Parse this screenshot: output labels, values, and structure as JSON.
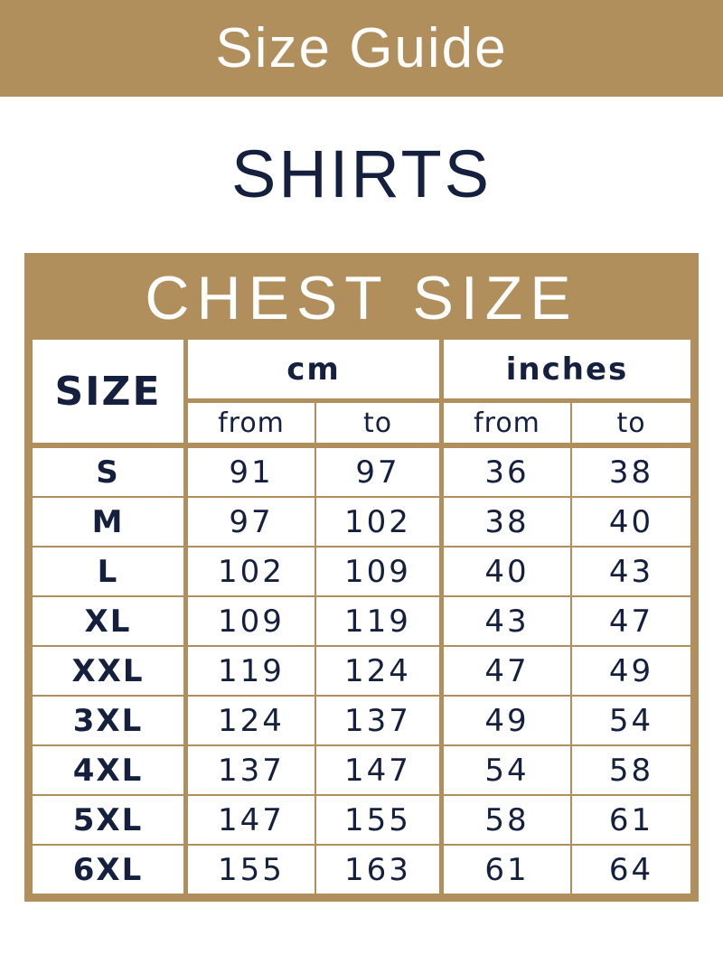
{
  "banner": {
    "title": "Size Guide"
  },
  "product": {
    "title": "SHIRTS"
  },
  "table": {
    "title": "CHEST SIZE",
    "size_header": "SIZE",
    "units": [
      {
        "label": "cm",
        "from": "from",
        "to": "to"
      },
      {
        "label": "inches",
        "from": "from",
        "to": "to"
      }
    ],
    "rows": [
      {
        "size": "S",
        "cm_from": "91",
        "cm_to": "97",
        "in_from": "36",
        "in_to": "38"
      },
      {
        "size": "M",
        "cm_from": "97",
        "cm_to": "102",
        "in_from": "38",
        "in_to": "40"
      },
      {
        "size": "L",
        "cm_from": "102",
        "cm_to": "109",
        "in_from": "40",
        "in_to": "43"
      },
      {
        "size": "XL",
        "cm_from": "109",
        "cm_to": "119",
        "in_from": "43",
        "in_to": "47"
      },
      {
        "size": "XXL",
        "cm_from": "119",
        "cm_to": "124",
        "in_from": "47",
        "in_to": "49"
      },
      {
        "size": "3XL",
        "cm_from": "124",
        "cm_to": "137",
        "in_from": "49",
        "in_to": "54"
      },
      {
        "size": "4XL",
        "cm_from": "137",
        "cm_to": "147",
        "in_from": "54",
        "in_to": "58"
      },
      {
        "size": "5XL",
        "cm_from": "147",
        "cm_to": "155",
        "in_from": "58",
        "in_to": "61"
      },
      {
        "size": "6XL",
        "cm_from": "155",
        "cm_to": "163",
        "in_from": "61",
        "in_to": "64"
      }
    ]
  },
  "colors": {
    "gold": "#b08f5c",
    "navy": "#151f3e"
  }
}
